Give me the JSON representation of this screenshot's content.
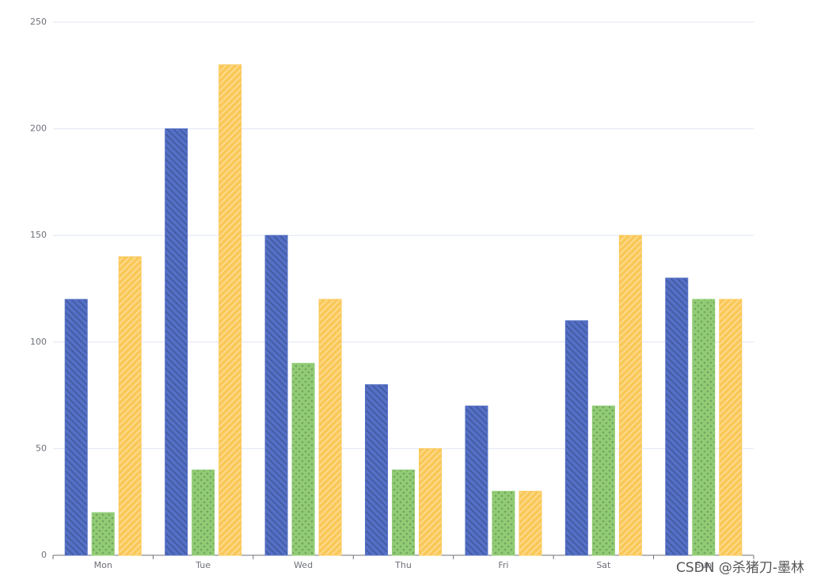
{
  "chart_data": {
    "type": "bar",
    "categories": [
      "Mon",
      "Tue",
      "Wed",
      "Thu",
      "Fri",
      "Sat",
      "Sun"
    ],
    "series": [
      {
        "color": "#5470c6",
        "pattern": "hatch-down",
        "values": [
          120,
          200,
          150,
          80,
          70,
          110,
          130
        ]
      },
      {
        "color": "#91cc75",
        "pattern": "dots",
        "values": [
          20,
          40,
          90,
          40,
          30,
          70,
          120
        ]
      },
      {
        "color": "#fac858",
        "pattern": "hatch-up",
        "values": [
          140,
          230,
          120,
          50,
          30,
          150,
          120
        ]
      }
    ],
    "ylim": [
      0,
      250
    ],
    "yticks": [
      0,
      50,
      100,
      150,
      200,
      250
    ],
    "grid": true,
    "watermark": "CSDN @杀猪刀-墨林"
  }
}
